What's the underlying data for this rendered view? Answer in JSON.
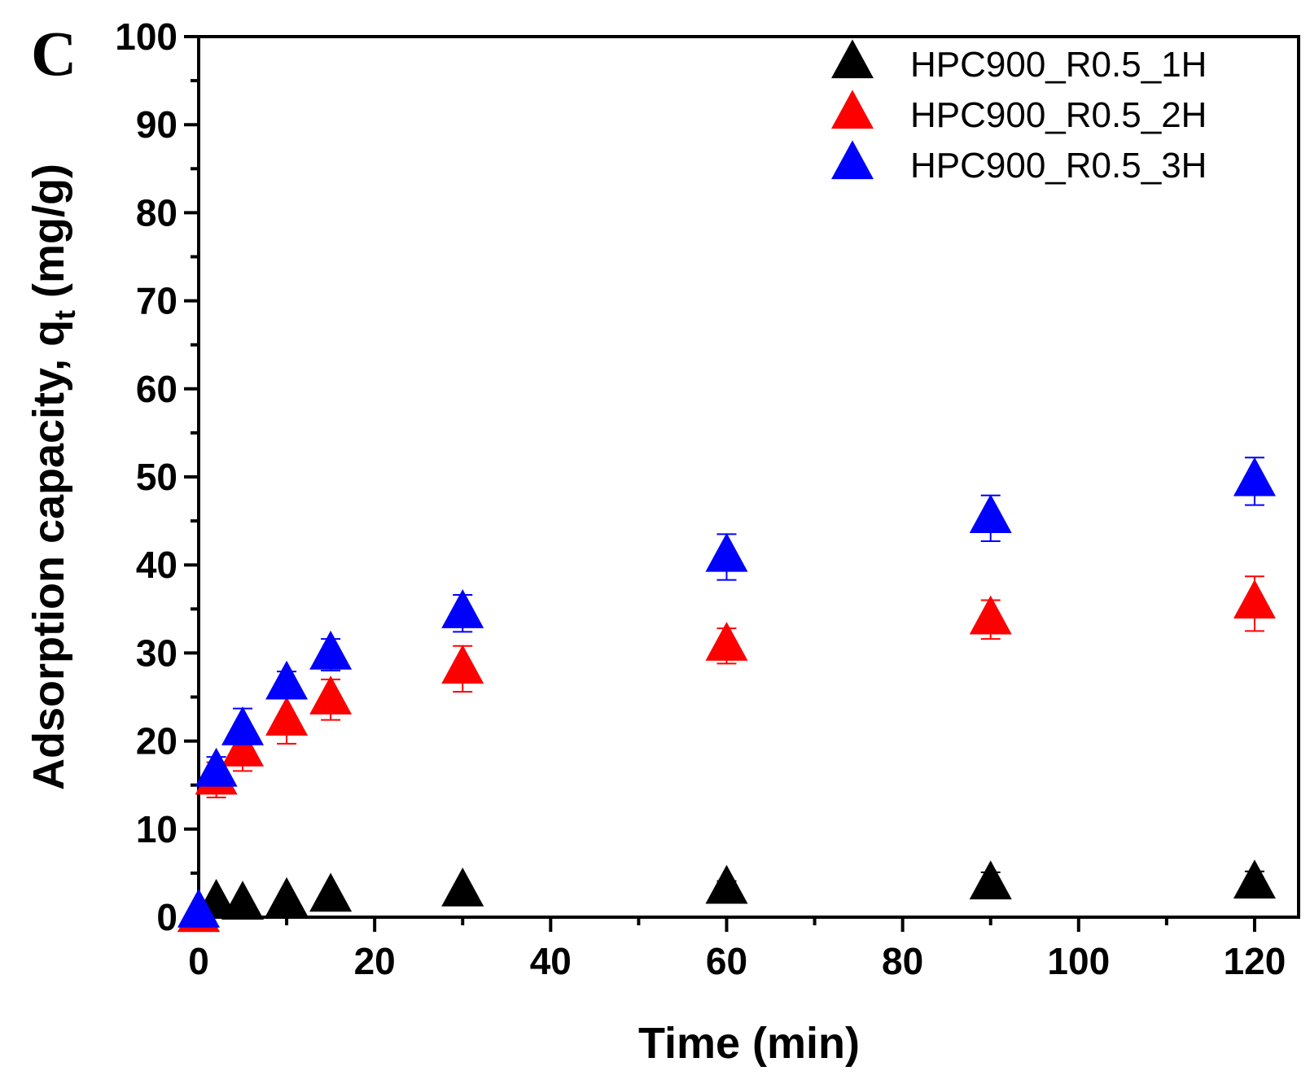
{
  "chart_data": {
    "type": "scatter",
    "panel_label": "C",
    "xlabel": "Time (min)",
    "ylabel": "Adsorption capacity, q",
    "ylabel_subscript": "t",
    "ylabel_unit": " (mg/g)",
    "xlim": [
      0,
      125
    ],
    "ylim": [
      0,
      100
    ],
    "x_ticks": [
      0,
      20,
      40,
      60,
      80,
      100,
      120
    ],
    "y_ticks": [
      0,
      10,
      20,
      30,
      40,
      50,
      60,
      70,
      80,
      90,
      100
    ],
    "legend_position": "top-right",
    "grid": false,
    "marker": "triangle-up",
    "series": [
      {
        "name": "HPC900_R0.5_1H",
        "color": "#000000",
        "x": [
          0,
          2,
          5,
          10,
          15,
          30,
          60,
          90,
          120
        ],
        "y": [
          0,
          1.6,
          1.4,
          1.8,
          2.3,
          2.9,
          3.2,
          3.7,
          3.8
        ],
        "err": [
          0,
          0.4,
          0.4,
          0.4,
          0.4,
          0.6,
          0.9,
          1.4,
          1.4
        ]
      },
      {
        "name": "HPC900_R0.5_2H",
        "color": "#ff0000",
        "x": [
          0,
          2,
          5,
          10,
          15,
          30,
          60,
          90,
          120
        ],
        "y": [
          0,
          15.6,
          18.8,
          22.3,
          24.7,
          28.2,
          30.8,
          33.8,
          35.6
        ],
        "err": [
          0,
          2.0,
          2.2,
          2.6,
          2.3,
          2.6,
          2.0,
          2.2,
          3.1
        ]
      },
      {
        "name": "HPC900_R0.5_3H",
        "color": "#0000ff",
        "x": [
          0,
          2,
          5,
          10,
          15,
          30,
          60,
          90,
          120
        ],
        "y": [
          0.5,
          16.5,
          21.2,
          26.4,
          29.8,
          34.5,
          40.9,
          45.3,
          49.5
        ],
        "err": [
          0,
          1.7,
          2.5,
          1.5,
          1.8,
          2.1,
          2.6,
          2.6,
          2.7
        ]
      }
    ]
  }
}
